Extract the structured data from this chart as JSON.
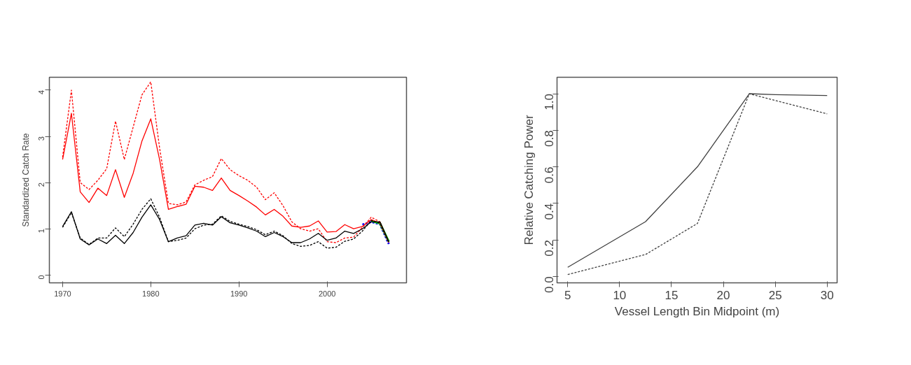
{
  "chart_data": [
    {
      "type": "line",
      "ylabel": "Standardized Catch Rate",
      "xlim": [
        1968.5,
        2009
      ],
      "ylim": [
        -0.17,
        4.28
      ],
      "xticks": [
        1970,
        1980,
        1990,
        2000
      ],
      "yticks": [
        0,
        1,
        2,
        3,
        4
      ],
      "x": [
        1970,
        1971,
        1972,
        1973,
        1974,
        1975,
        1976,
        1977,
        1978,
        1979,
        1980,
        1981,
        1982,
        1983,
        1984,
        1985,
        1986,
        1987,
        1988,
        1989,
        1990,
        1991,
        1992,
        1993,
        1994,
        1995,
        1996,
        1997,
        1998,
        1999,
        2000,
        2001,
        2002,
        2003,
        2004,
        2005,
        2006,
        2007
      ],
      "series": [
        {
          "color": "#ff0000",
          "line_style": "dashed",
          "values": [
            2.55,
            4.0,
            2.0,
            1.85,
            2.05,
            2.3,
            3.33,
            2.5,
            3.2,
            3.9,
            4.18,
            2.75,
            1.55,
            1.52,
            1.58,
            1.95,
            2.05,
            2.13,
            2.52,
            2.28,
            2.15,
            2.05,
            1.9,
            1.63,
            1.78,
            1.5,
            1.15,
            1.0,
            0.95,
            1.0,
            0.72,
            0.7,
            0.8,
            0.82,
            1.03,
            1.25,
            1.15,
            0.7
          ]
        },
        {
          "color": "#ff0000",
          "line_style": "solid",
          "values": [
            2.5,
            3.5,
            1.8,
            1.57,
            1.88,
            1.72,
            2.28,
            1.68,
            2.2,
            2.9,
            3.38,
            2.5,
            1.42,
            1.48,
            1.53,
            1.92,
            1.9,
            1.83,
            2.1,
            1.83,
            1.72,
            1.6,
            1.47,
            1.3,
            1.42,
            1.27,
            1.06,
            1.03,
            1.06,
            1.17,
            0.93,
            0.94,
            1.09,
            1.0,
            1.05,
            1.2,
            1.12,
            0.7
          ]
        },
        {
          "color": "#000000",
          "line_style": "dashed",
          "values": [
            1.03,
            1.35,
            0.8,
            0.66,
            0.8,
            0.8,
            1.02,
            0.83,
            1.1,
            1.42,
            1.65,
            1.25,
            0.72,
            0.75,
            0.8,
            1.0,
            1.08,
            1.1,
            1.28,
            1.16,
            1.1,
            1.05,
            0.98,
            0.87,
            0.95,
            0.85,
            0.68,
            0.62,
            0.64,
            0.72,
            0.58,
            0.6,
            0.73,
            0.78,
            0.95,
            1.18,
            1.12,
            0.7
          ]
        },
        {
          "color": "#000000",
          "line_style": "solid",
          "values": [
            1.05,
            1.37,
            0.78,
            0.65,
            0.78,
            0.68,
            0.86,
            0.68,
            0.92,
            1.25,
            1.52,
            1.2,
            0.72,
            0.8,
            0.85,
            1.08,
            1.12,
            1.08,
            1.26,
            1.13,
            1.08,
            1.02,
            0.95,
            0.83,
            0.92,
            0.83,
            0.7,
            0.7,
            0.78,
            0.9,
            0.75,
            0.8,
            0.95,
            0.9,
            1.0,
            1.15,
            1.15,
            0.72
          ]
        },
        {
          "color": "#0000ff",
          "line_style": "dashed",
          "x": [
            2004,
            2005,
            2006,
            2007
          ],
          "values": [
            1.09,
            1.15,
            1.1,
            0.67
          ]
        },
        {
          "color": "#00cc00",
          "line_style": "solid",
          "x": [
            2005,
            2006,
            2007
          ],
          "values": [
            1.17,
            1.12,
            0.72
          ]
        }
      ]
    },
    {
      "type": "line",
      "xlabel": "Vessel Length Bin Midpoint (m)",
      "ylabel": "Relative Catching Power",
      "xlim": [
        3.97,
        30.96
      ],
      "ylim": [
        -0.035,
        1.09
      ],
      "xticks": [
        5,
        10,
        15,
        20,
        25,
        30
      ],
      "yticks": [
        {
          "value": 0,
          "label": "0.0"
        },
        0.2,
        0.4,
        0.6,
        0.8,
        {
          "value": 1,
          "label": "1.0"
        }
      ],
      "series": [
        {
          "color": "#404040",
          "line_style": "solid",
          "x": [
            5,
            12.5,
            17.5,
            22.5,
            25,
            30
          ],
          "values": [
            0.05,
            0.3,
            0.6,
            1.0,
            0.995,
            0.99
          ]
        },
        {
          "color": "#404040",
          "line_style": "dashed",
          "x": [
            5,
            12.5,
            17.5,
            22.5,
            30
          ],
          "values": [
            0.01,
            0.12,
            0.29,
            1.0,
            0.89
          ]
        }
      ]
    }
  ]
}
